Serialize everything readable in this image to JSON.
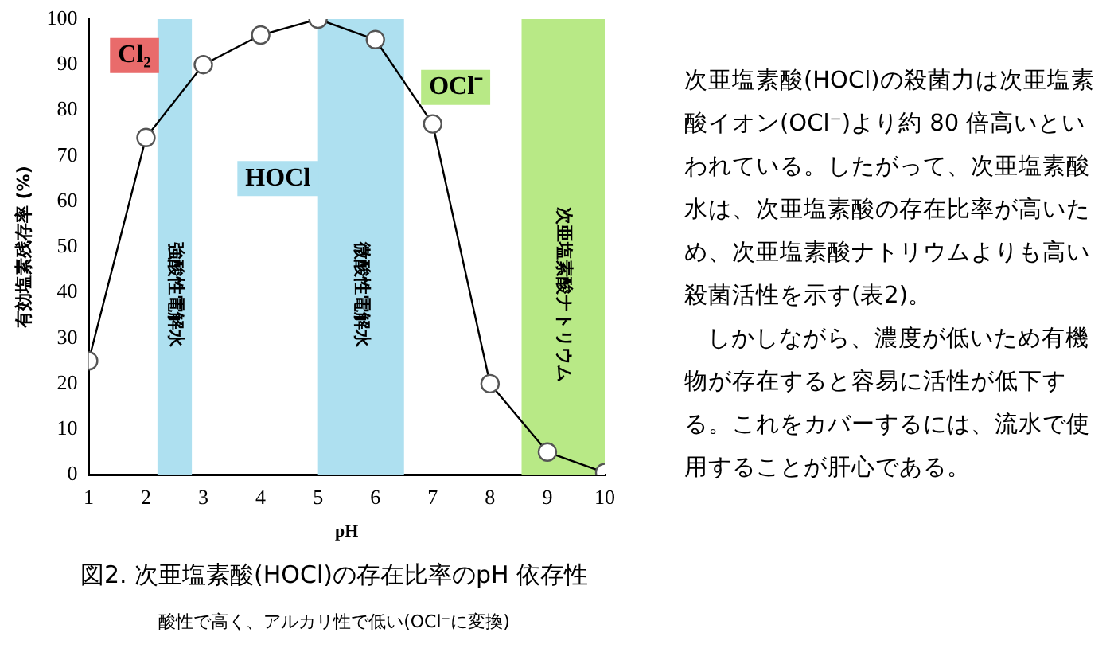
{
  "chart_data": {
    "type": "line",
    "title": "図2. 次亜塩素酸(HOCl)の存在比率のpH 依存性",
    "subtitle": "酸性で高く、アルカリ性で低い(OCl⁻に変換)",
    "xlabel": "pH",
    "ylabel": "有効塩素残存率 (%)",
    "x": [
      1,
      2,
      3,
      4,
      5,
      6,
      7,
      8,
      9,
      10
    ],
    "series": [
      {
        "color": "#000000",
        "values": [
          25,
          74,
          90,
          96.5,
          100,
          95.5,
          77,
          20,
          5,
          0.5
        ]
      }
    ],
    "xlim": [
      1,
      10
    ],
    "xticks": [
      1,
      2,
      3,
      4,
      5,
      6,
      7,
      8,
      9,
      10
    ],
    "ylim": [
      0,
      100
    ],
    "yticks": [
      0,
      10,
      20,
      30,
      40,
      50,
      60,
      70,
      80,
      90,
      100
    ],
    "bands": [
      {
        "axis": "x",
        "from": 2.2,
        "to": 2.8,
        "label": "強酸性電解水",
        "color": "#aee0f0"
      },
      {
        "axis": "x",
        "from": 5,
        "to": 6.5,
        "label": "微酸性電解水",
        "color": "#aee0f0"
      },
      {
        "axis": "x",
        "from": 8.55,
        "to": 10,
        "label": "次亜塩素酸ナトリウム",
        "color": "#b8e986"
      }
    ],
    "annotations": [
      "Cl₂",
      "HOCl",
      "OCl⁻",
      "次亜塩素酸(HOCl)の殺菌力は次亜塩素酸イオン(OCl⁻)より約 80 倍高いといわれている。したがって、次亜塩素酸水は、次亜塩素酸の存在比率が高いため、次亜塩素酸ナトリウムよりも高い殺菌活性を示す(表2)。",
      "しかしながら、濃度が低いため有機物が存在すると容易に活性が低下する。これをカバーするには、流水で使用することが肝心である。"
    ],
    "grid": false,
    "legend": false,
    "marker": "circle",
    "line_style": "solid"
  }
}
